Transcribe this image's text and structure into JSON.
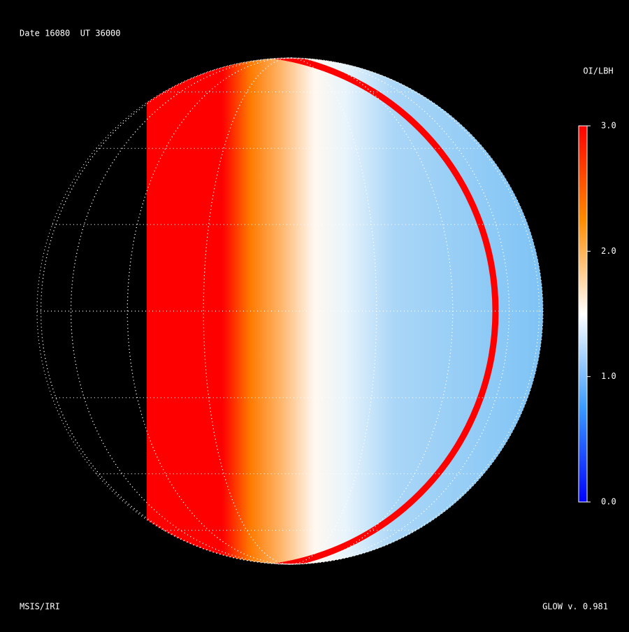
{
  "header": {
    "title": "Date 16080  UT 36000"
  },
  "footer": {
    "left": "MSIS/IRI",
    "right": "GLOW v. 0.981"
  },
  "colorbar": {
    "title": "OI/LBH",
    "lim": [
      0,
      3
    ],
    "ticks": [
      {
        "value": 0,
        "label": "0.0"
      },
      {
        "value": 1,
        "label": "1.0"
      },
      {
        "value": 2,
        "label": "2.0"
      },
      {
        "value": 3,
        "label": "3.0"
      }
    ],
    "colors": [
      "#0000ff",
      "#3a9bff",
      "#ffffff",
      "#ff8c00",
      "#ff0000"
    ]
  }
}
